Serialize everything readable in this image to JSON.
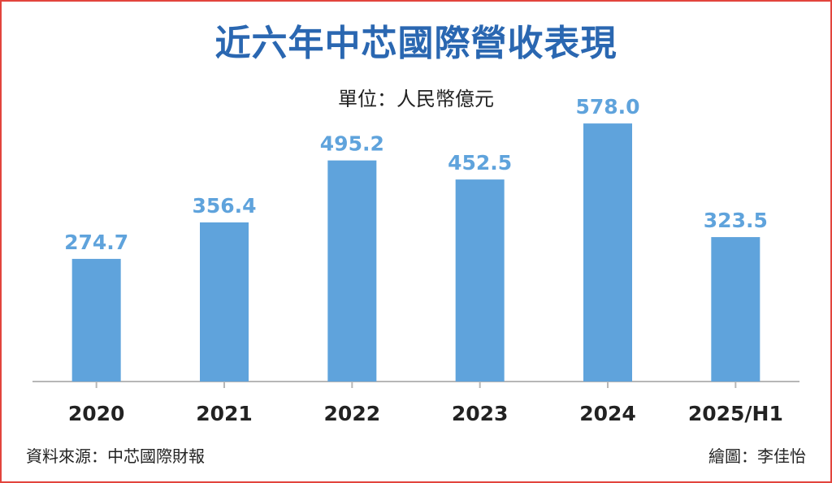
{
  "chart_data": {
    "type": "bar",
    "title": "近六年中芯國際營收表現",
    "subtitle": "單位：人民幣億元",
    "categories": [
      "2020",
      "2021",
      "2022",
      "2023",
      "2024",
      "2025/H1"
    ],
    "values": [
      274.7,
      356.4,
      495.2,
      452.5,
      578.0,
      323.5
    ],
    "value_labels": [
      "274.7",
      "356.4",
      "495.2",
      "452.5",
      "578.0",
      "323.5"
    ],
    "ylim": [
      0,
      600
    ],
    "grid": false,
    "legend": "none",
    "bar_color": "#5fa3dc",
    "title_color": "#2a67b1"
  },
  "footer": {
    "source": "資料來源：中芯國際財報",
    "credit": "繪圖：李佳怡"
  },
  "colors": {
    "border": "#e2443d",
    "text": "#222222"
  }
}
